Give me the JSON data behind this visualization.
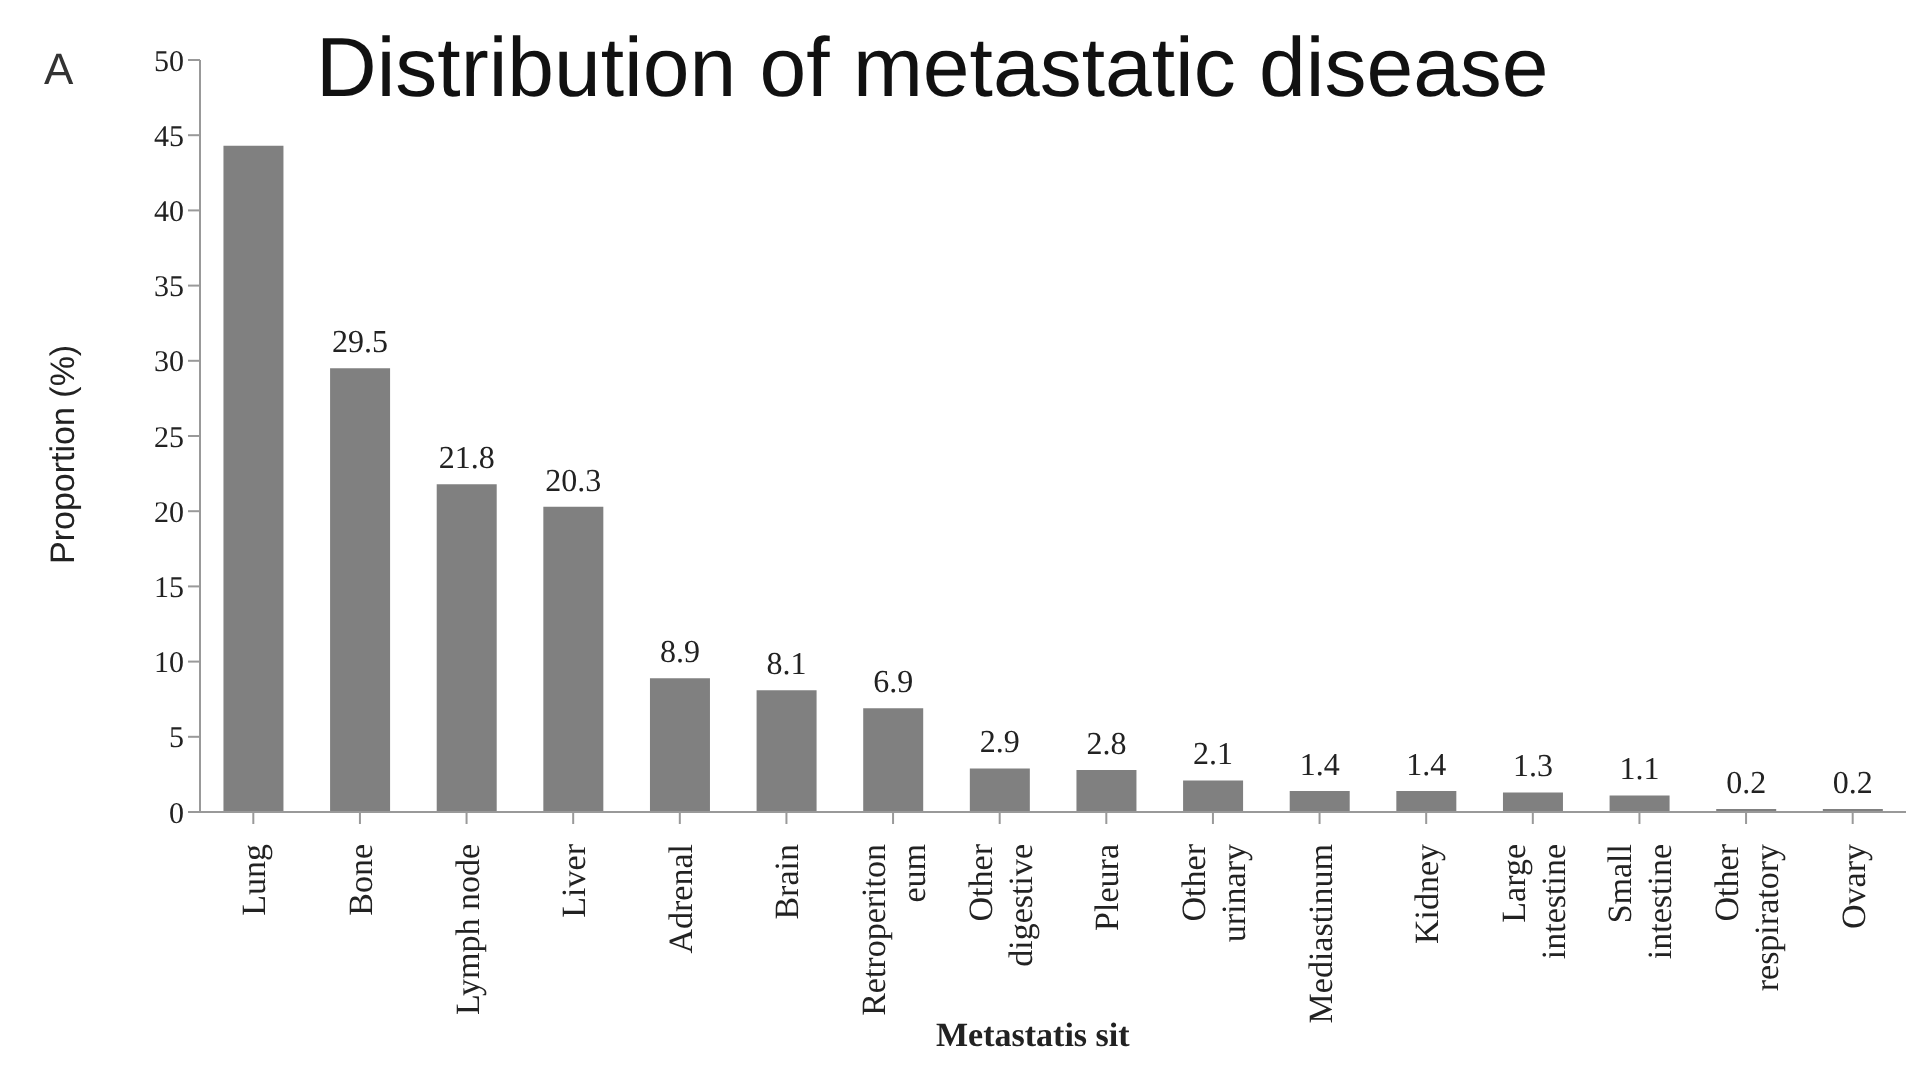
{
  "chart_data": {
    "type": "bar",
    "title": "Distribution of metastatic disease",
    "xlabel": "Metastatis sit",
    "ylabel": "Proportion (%)",
    "annotations": [
      "A"
    ],
    "categories": [
      "Lung",
      "Bone",
      "Lymph node",
      "Liver",
      "Adrenal",
      "Brain",
      "Retroperiton\neum",
      "Other\ndigestive",
      "Pleura",
      "Other\nurinary",
      "Mediastinum",
      "Kidney",
      "Large\nintestine",
      "Small\nintestine",
      "Other\nrespiratory",
      "Ovary"
    ],
    "values": [
      44.3,
      29.5,
      21.8,
      20.3,
      8.9,
      8.1,
      6.9,
      2.9,
      2.8,
      2.1,
      1.4,
      1.4,
      1.3,
      1.1,
      0.2,
      0.2
    ],
    "value_labels": [
      null,
      "29.5",
      "21.8",
      "20.3",
      "8.9",
      "8.1",
      "6.9",
      "2.9",
      "2.8",
      "2.1",
      "1.4",
      "1.4",
      "1.3",
      "1.1",
      "0.2",
      "0.2"
    ],
    "color": "#808080",
    "ylim": [
      0,
      50
    ],
    "yticks": [
      0,
      5,
      10,
      15,
      20,
      25,
      30,
      35,
      40,
      45,
      50
    ],
    "grid": false,
    "legend": false
  }
}
